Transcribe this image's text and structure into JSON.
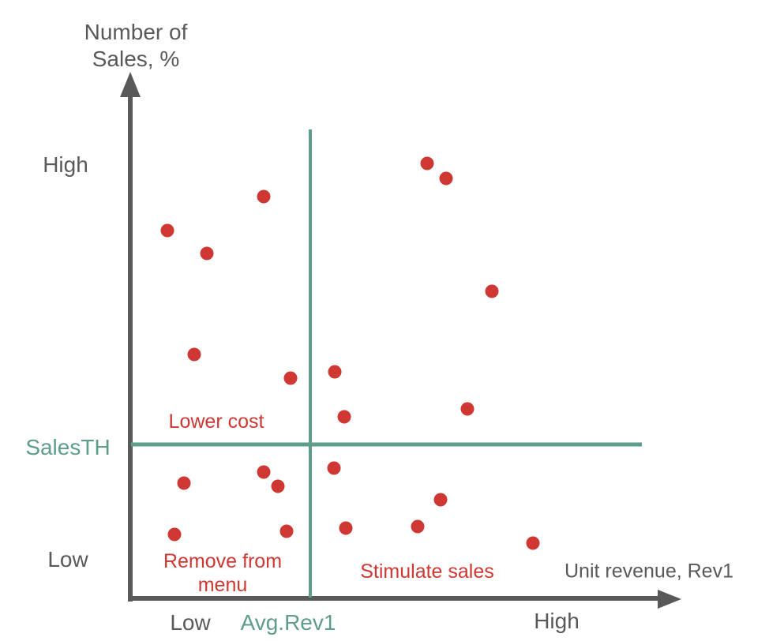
{
  "colors": {
    "axis": "#595959",
    "label": "#595959",
    "threshold": "#5E9C8B",
    "point": "#CF3732",
    "quadrant_label": "#CF3732",
    "background": "#FFFFFF"
  },
  "chart_data": {
    "type": "scatter",
    "title": "",
    "x_axis_title": "Unit revenue, Rev1",
    "y_axis_title_line1": "Number of",
    "y_axis_title_line2": "Sales, %",
    "x_tick_labels": {
      "low": "Low",
      "threshold": "Avg.Rev1",
      "high": "High"
    },
    "y_tick_labels": {
      "low": "Low",
      "threshold": "SalesTH",
      "high": "High"
    },
    "thresholds": {
      "x_label": "Avg.Rev1",
      "x_percent": 32.8,
      "y_label": "SalesTH",
      "y_percent": 29.7
    },
    "quadrant_labels": {
      "upper_left": "Lower cost",
      "lower_left_line1": "Remove from",
      "lower_left_line2": "menu",
      "lower_right": "Stimulate sales"
    },
    "axes": {
      "x_range": [
        "Low",
        "High"
      ],
      "y_range": [
        "Low",
        "High"
      ],
      "grid": false,
      "legend": false
    },
    "point_units": "percent_of_plot_area_from_bottom_left",
    "points": [
      {
        "x": 54.1,
        "y": 83.8
      },
      {
        "x": 57.6,
        "y": 80.9
      },
      {
        "x": 24.3,
        "y": 77.4
      },
      {
        "x": 6.8,
        "y": 70.9
      },
      {
        "x": 14.0,
        "y": 66.5
      },
      {
        "x": 65.9,
        "y": 59.2
      },
      {
        "x": 11.7,
        "y": 47.0
      },
      {
        "x": 37.3,
        "y": 43.7
      },
      {
        "x": 29.2,
        "y": 42.5
      },
      {
        "x": 61.4,
        "y": 36.6
      },
      {
        "x": 39.0,
        "y": 35.1
      },
      {
        "x": 37.1,
        "y": 25.2
      },
      {
        "x": 24.3,
        "y": 24.4
      },
      {
        "x": 9.8,
        "y": 22.3
      },
      {
        "x": 26.9,
        "y": 21.7
      },
      {
        "x": 56.5,
        "y": 19.1
      },
      {
        "x": 52.4,
        "y": 14.0
      },
      {
        "x": 39.3,
        "y": 13.7
      },
      {
        "x": 28.5,
        "y": 13.1
      },
      {
        "x": 8.1,
        "y": 12.4
      },
      {
        "x": 73.4,
        "y": 10.8
      }
    ]
  }
}
